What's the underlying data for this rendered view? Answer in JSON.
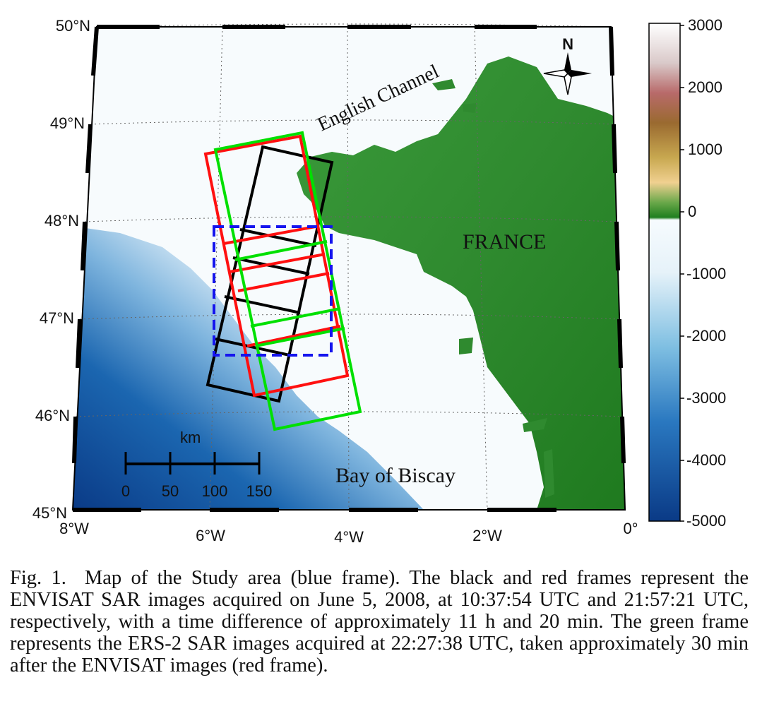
{
  "map": {
    "lat_labels": [
      "50°N",
      "49°N",
      "48°N",
      "47°N",
      "46°N",
      "45°N"
    ],
    "lon_labels": [
      "8°W",
      "6°W",
      "4°W",
      "2°W",
      "0°"
    ],
    "places": {
      "english_channel": "English Channel",
      "france": "FRANCE",
      "bay_of_biscay": "Bay of Biscay"
    },
    "north_arrow": "N",
    "scale_bar": {
      "unit": "km",
      "ticks": [
        "0",
        "50",
        "100",
        "150"
      ]
    },
    "frames": [
      {
        "name": "ENVISAT SAR 10:37:54 UTC",
        "color": "#000000"
      },
      {
        "name": "ENVISAT SAR 21:57:21 UTC",
        "color": "#ff0000"
      },
      {
        "name": "ERS-2 SAR 22:27:38 UTC",
        "color": "#00e000"
      },
      {
        "name": "Study area",
        "color": "#0000ff"
      }
    ]
  },
  "colorbar": {
    "labels": [
      "3000",
      "2000",
      "1000",
      "0",
      "-1000",
      "-2000",
      "-3000",
      "-4000",
      "-5000"
    ],
    "colors": {
      "deep": "#0a3a86",
      "shallow": "#eef6fb",
      "land_low": "#1f7f1f",
      "land_mid": "#e0c070",
      "land_high": "#b06060",
      "peak": "#ffffff"
    }
  },
  "caption": {
    "label": "Fig. 1.",
    "text": "Map of the Study area (blue frame). The black and red frames represent the ENVISAT SAR images acquired on June 5, 2008, at 10:37:54 UTC and 21:57:21 UTC, respectively, with a time difference of approximately 11 h and 20 min. The green frame represents the ERS-2 SAR images acquired at 22:27:38 UTC, taken approximately 30 min after the ENVISAT images (red frame)."
  }
}
